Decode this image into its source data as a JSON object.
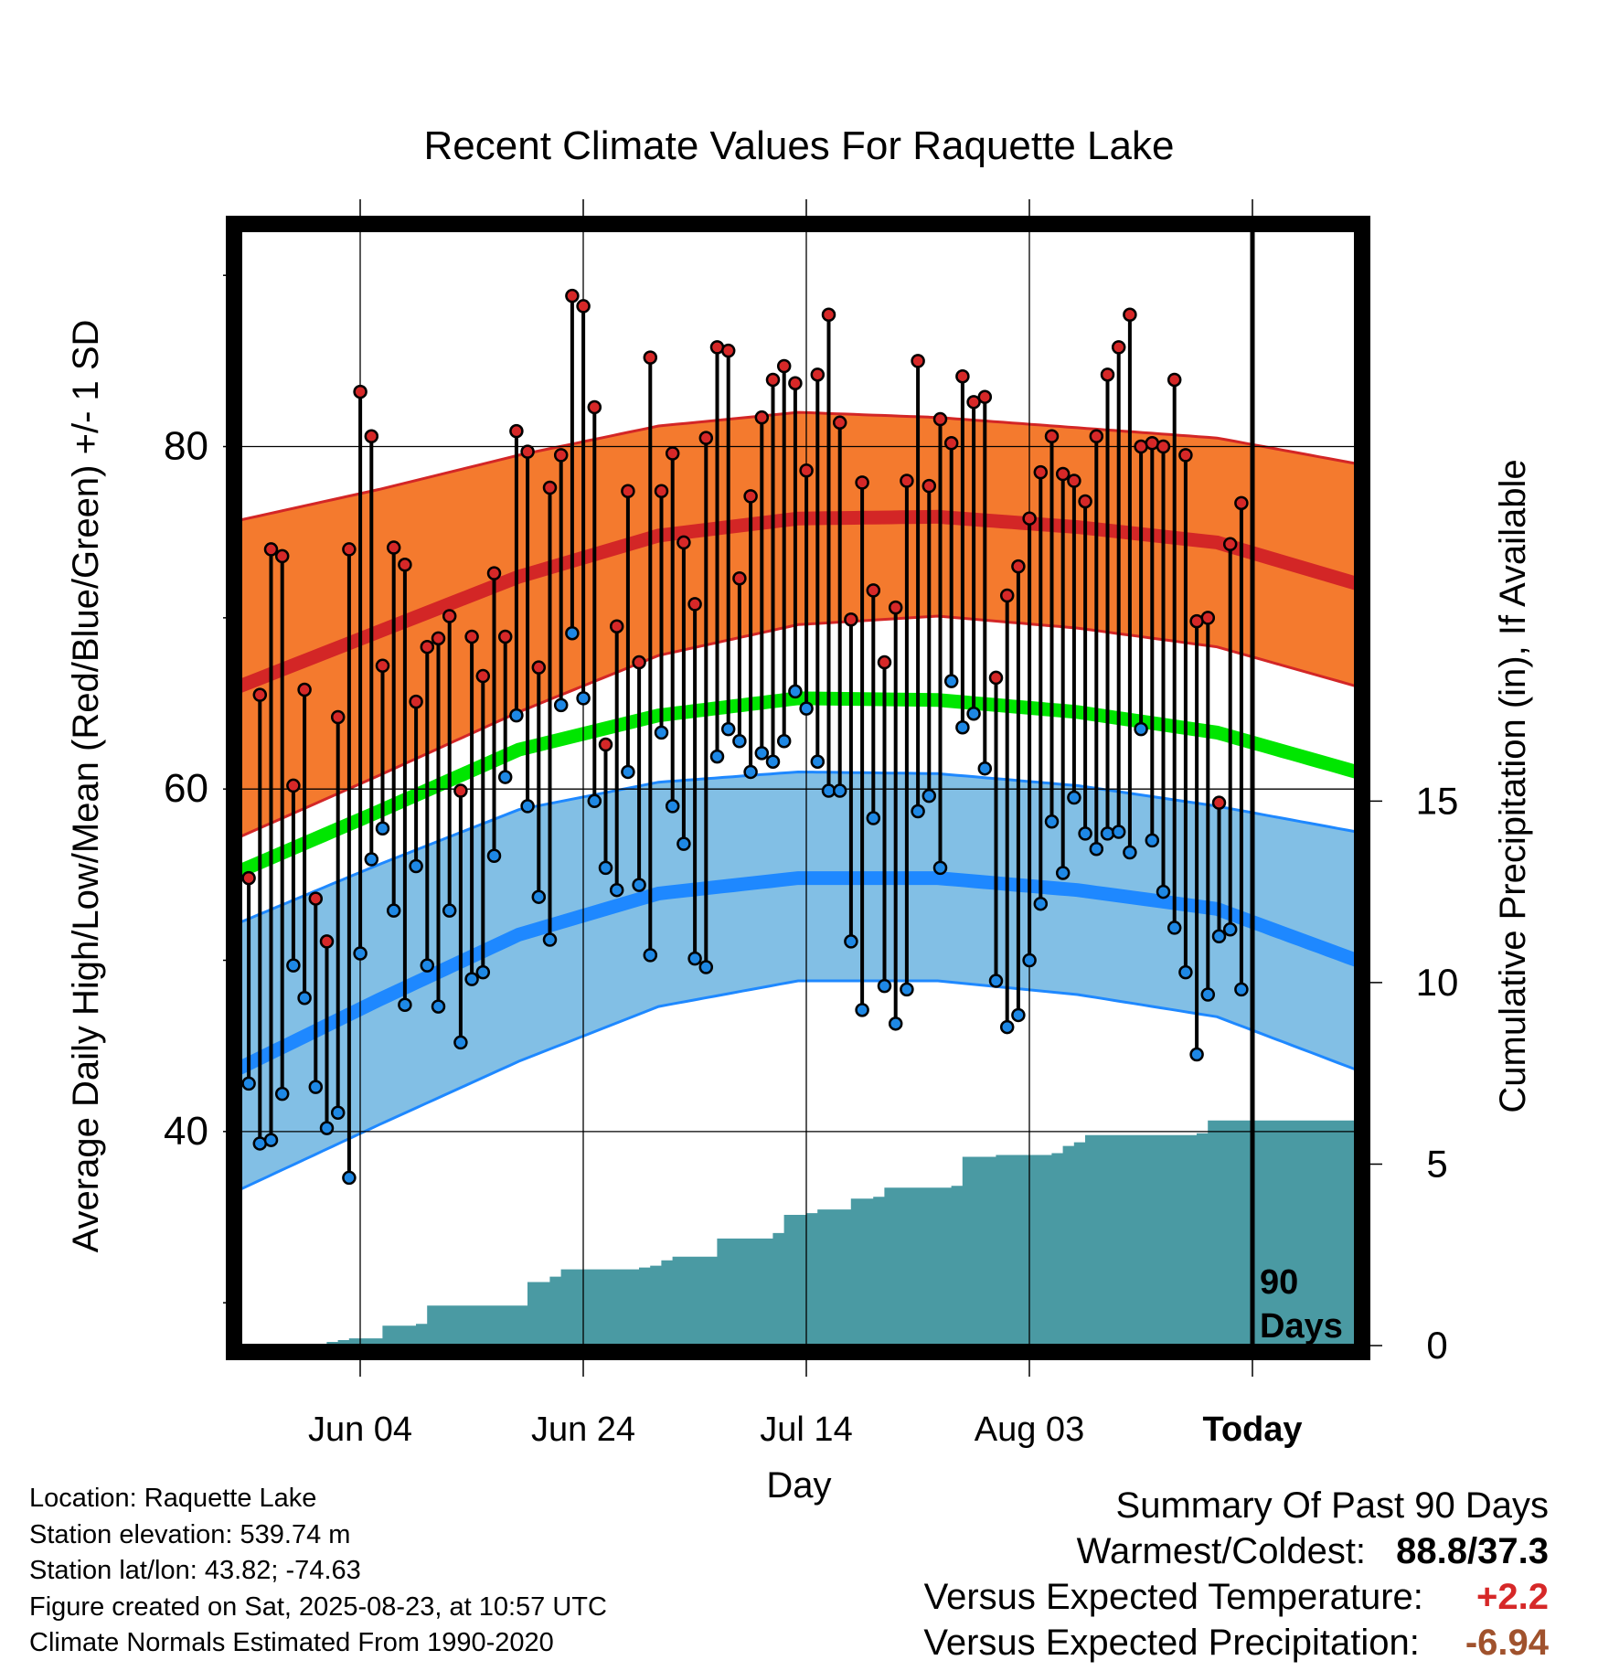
{
  "chart_data": {
    "type": "line",
    "title": "Recent Climate Values For Raquette Lake",
    "xlabel": "Day",
    "ylabel_left": "Average Daily High/Low/Mean (Red/Blue/Green) +/- 1 SD",
    "ylabel_right": "Cumulative Precipitation (in), If Available",
    "x_tick_labels": [
      "Jun 04",
      "Jun 24",
      "Jul 14",
      "Aug 03",
      "Today"
    ],
    "y_left_ticks": [
      "40",
      "60",
      "80"
    ],
    "y_left_range": [
      27.5,
      93
    ],
    "y_right_ticks": [
      "0",
      "5",
      "10",
      "15"
    ],
    "y_right_range": [
      0,
      30.9
    ],
    "today_label": "90 Days",
    "grid": true,
    "normals": {
      "high_mean": [
        66,
        69.2,
        72.4,
        74.8,
        75.8,
        75.9,
        75.3,
        74.4,
        72
      ],
      "high_upper": [
        75.7,
        77.5,
        79.5,
        81.2,
        82,
        81.7,
        81.1,
        80.5,
        79
      ],
      "high_lower": [
        57.2,
        60.8,
        64.5,
        67.8,
        69.6,
        70.1,
        69.4,
        68.3,
        66
      ],
      "mean": [
        55.2,
        58.7,
        62.3,
        64.3,
        65.3,
        65.2,
        64.5,
        63.3,
        61
      ],
      "low_mean": [
        43.7,
        47.7,
        51.5,
        53.9,
        54.8,
        54.8,
        54.1,
        53,
        50
      ],
      "low_upper": [
        52.2,
        55.6,
        58.8,
        60.4,
        61,
        60.9,
        60.2,
        59,
        57.5
      ],
      "low_lower": [
        36.6,
        40.4,
        44.1,
        47.3,
        48.8,
        48.8,
        48,
        46.7,
        43.6
      ]
    },
    "series": [
      {
        "name": "High",
        "color": "#d62828",
        "values": [
          54.8,
          65.5,
          74,
          73.6,
          60.2,
          65.8,
          53.6,
          51.1,
          64.2,
          74,
          83.2,
          80.6,
          67.2,
          74.1,
          73.1,
          65.1,
          68.3,
          68.8,
          70.1,
          59.9,
          68.9,
          66.6,
          72.6,
          68.9,
          80.9,
          79.7,
          67.1,
          77.6,
          79.5,
          88.8,
          88.2,
          82.3,
          62.6,
          69.5,
          77.4,
          67.4,
          85.2,
          77.4,
          79.6,
          74.4,
          70.8,
          80.5,
          85.8,
          85.6,
          72.3,
          77.1,
          81.7,
          83.9,
          84.7,
          83.7,
          78.6,
          84.2,
          87.7,
          81.4,
          69.9,
          77.9,
          71.6,
          67.4,
          70.6,
          78,
          85,
          77.7,
          81.6,
          80.2,
          84.1,
          82.6,
          82.9,
          66.5,
          71.3,
          73,
          75.8,
          78.5,
          80.6,
          78.4,
          78,
          76.8,
          80.6,
          84.2,
          85.8,
          87.7,
          80,
          80.2,
          80,
          83.9,
          79.5,
          69.8,
          70,
          59.2,
          74.3,
          76.7
        ]
      },
      {
        "name": "Low",
        "color": "#1e88e5",
        "values": [
          42.8,
          39.3,
          39.5,
          42.2,
          49.7,
          47.8,
          42.6,
          40.2,
          41.1,
          37.3,
          50.4,
          55.9,
          57.7,
          52.9,
          47.4,
          55.5,
          49.7,
          47.3,
          52.9,
          45.2,
          48.9,
          49.3,
          56.1,
          60.7,
          64.3,
          59,
          53.7,
          51.2,
          64.9,
          69.1,
          65.3,
          59.3,
          55.4,
          54.1,
          61,
          54.4,
          50.3,
          63.3,
          59,
          56.8,
          50.1,
          49.6,
          61.9,
          63.5,
          62.8,
          61,
          62.1,
          61.6,
          62.8,
          65.7,
          64.7,
          61.6,
          59.9,
          59.9,
          51.1,
          47.1,
          58.3,
          48.5,
          46.3,
          48.3,
          58.7,
          59.6,
          55.4,
          66.3,
          63.6,
          64.4,
          61.2,
          48.8,
          46.1,
          46.8,
          50,
          53.3,
          58.1,
          55.1,
          59.5,
          57.4,
          56.5,
          57.4,
          57.5,
          56.3,
          63.5,
          57,
          54,
          51.9,
          49.3,
          44.5,
          48,
          51.4,
          51.8,
          48.3
        ]
      },
      {
        "name": "Cumulative Precipitation",
        "color": "#4a9aa3",
        "values": [
          0,
          0,
          0,
          0,
          0,
          0,
          0.05,
          0.1,
          0.15,
          0.2,
          0.2,
          0.2,
          0.55,
          0.55,
          0.55,
          0.6,
          1.1,
          1.1,
          1.1,
          1.1,
          1.1,
          1.1,
          1.1,
          1.1,
          1.1,
          1.75,
          1.75,
          1.9,
          2.1,
          2.1,
          2.1,
          2.1,
          2.1,
          2.1,
          2.1,
          2.15,
          2.2,
          2.35,
          2.45,
          2.45,
          2.45,
          2.45,
          2.95,
          2.95,
          2.95,
          2.95,
          2.95,
          3.1,
          3.6,
          3.6,
          3.65,
          3.75,
          3.75,
          3.75,
          4.05,
          4.05,
          4.1,
          4.35,
          4.35,
          4.35,
          4.35,
          4.35,
          4.35,
          4.4,
          5.2,
          5.2,
          5.2,
          5.25,
          5.25,
          5.25,
          5.25,
          5.25,
          5.3,
          5.5,
          5.6,
          5.8,
          5.8,
          5.8,
          5.8,
          5.8,
          5.8,
          5.8,
          5.8,
          5.8,
          5.8,
          5.85,
          6.2,
          6.2,
          6.2,
          6.2
        ]
      }
    ]
  },
  "info": {
    "location": "Location: Raquette Lake",
    "elevation": "Station elevation: 539.74 m",
    "latlon": "Station lat/lon: 43.82; -74.63",
    "created": "Figure created on Sat, 2025-08-23, at 10:57 UTC",
    "normals_period": "Climate Normals Estimated From 1990-2020"
  },
  "summary": {
    "heading": "Summary Of Past 90 Days",
    "warm_cold_label": "Warmest/Coldest:",
    "warm_cold_value": "88.8/37.3",
    "temp_label": "Versus Expected Temperature:",
    "temp_value": "+2.2",
    "precip_label": "Versus Expected Precipitation:",
    "precip_value": "-6.94"
  },
  "colors": {
    "high_band": "#f47a2e",
    "high_line": "#d32626",
    "mean_line": "#00e600",
    "low_band": "#82bfe5",
    "low_line": "#1e88ff",
    "precip_fill": "#4a9aa3",
    "high_dot": "#d62828",
    "low_dot": "#1e88e5"
  }
}
